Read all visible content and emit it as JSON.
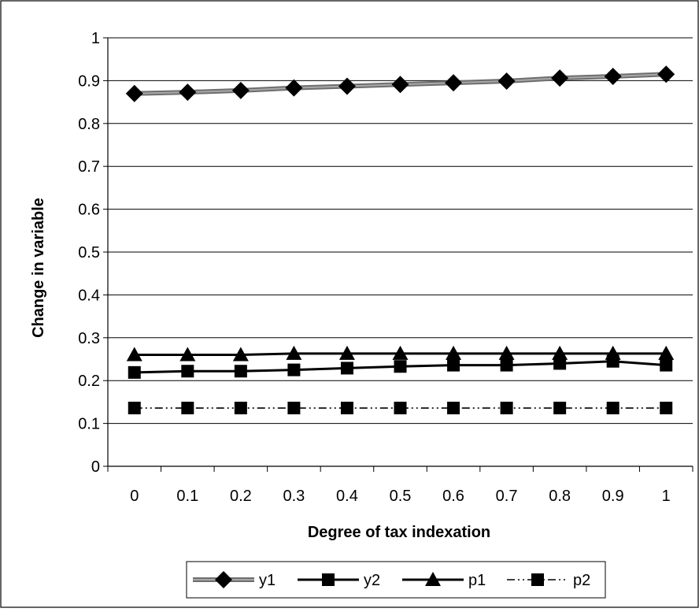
{
  "chart_data": {
    "type": "line",
    "title": "",
    "xlabel": "Degree of tax indexation",
    "ylabel": "Change in variable",
    "categories": [
      "0",
      "0.1",
      "0.2",
      "0.3",
      "0.4",
      "0.5",
      "0.6",
      "0.7",
      "0.8",
      "0.9",
      "1"
    ],
    "ylim": [
      0,
      1
    ],
    "yticks": [
      "0",
      "0.1",
      "0.2",
      "0.3",
      "0.4",
      "0.5",
      "0.6",
      "0.7",
      "0.8",
      "0.9",
      "1"
    ],
    "grid": "horizontal",
    "legend_position": "bottom",
    "series": [
      {
        "name": "y1",
        "values": [
          0.87,
          0.873,
          0.877,
          0.883,
          0.887,
          0.891,
          0.895,
          0.899,
          0.906,
          0.91,
          0.915
        ],
        "marker": "diamond",
        "line_style": "thick-gray",
        "color": "#808080"
      },
      {
        "name": "y2",
        "values": [
          0.219,
          0.222,
          0.222,
          0.225,
          0.229,
          0.233,
          0.236,
          0.236,
          0.24,
          0.245,
          0.236
        ],
        "marker": "square",
        "line_style": "solid",
        "color": "#000000"
      },
      {
        "name": "p1",
        "values": [
          0.26,
          0.26,
          0.26,
          0.263,
          0.263,
          0.263,
          0.263,
          0.263,
          0.263,
          0.263,
          0.263
        ],
        "marker": "triangle",
        "line_style": "solid",
        "color": "#000000"
      },
      {
        "name": "p2",
        "values": [
          0.136,
          0.136,
          0.136,
          0.136,
          0.136,
          0.136,
          0.136,
          0.136,
          0.136,
          0.136,
          0.136
        ],
        "marker": "square",
        "line_style": "dash-dot-dot",
        "color": "#000000"
      }
    ]
  }
}
